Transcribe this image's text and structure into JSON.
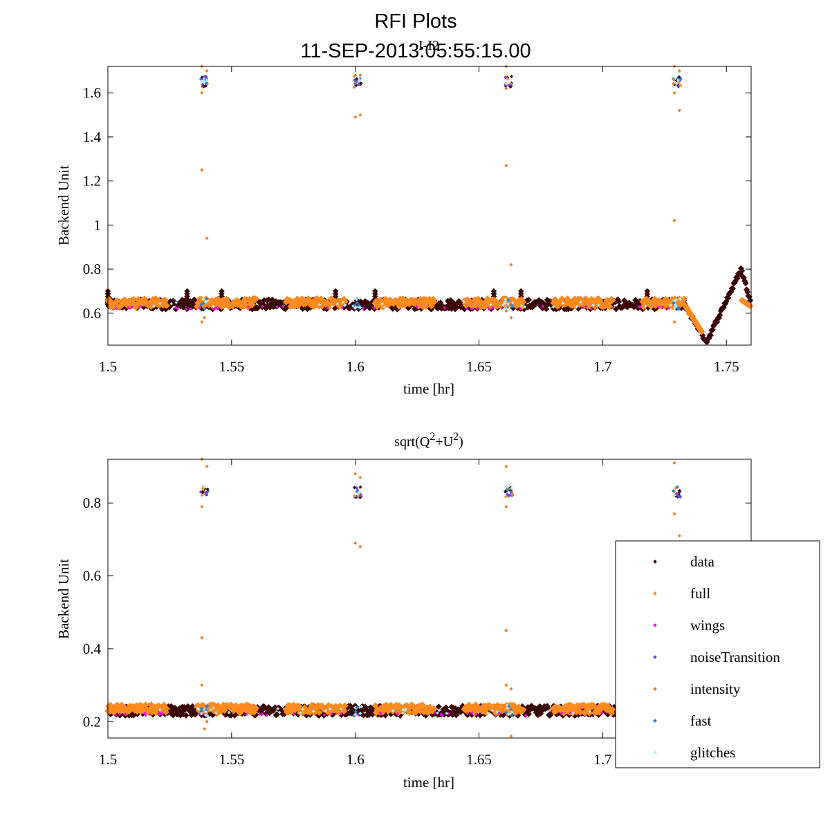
{
  "figure": {
    "title": "RFI Plots",
    "subtitle": "11-SEP-2013:05:55:15.00"
  },
  "colors": {
    "data": "#3a0606",
    "full": "#ff8a1e",
    "wings": "#ff00ff",
    "noiseTransition": "#7a3cff",
    "intensity": "#ee7a22",
    "fast": "#2a7fd0",
    "glitches": "#a8f0ff"
  },
  "legend": {
    "position": "bottom-right",
    "entries": [
      "data",
      "full",
      "wings",
      "noiseTransition",
      "intensity",
      "fast",
      "glitches"
    ]
  },
  "chart_data": [
    {
      "type": "scatter",
      "title": "I-I2",
      "xlabel": "time [hr]",
      "ylabel": "Backend Unit",
      "xlim": [
        1.5,
        1.76
      ],
      "ylim": [
        0.455,
        1.72
      ],
      "xticks": [
        1.5,
        1.55,
        1.6,
        1.65,
        1.7,
        1.75
      ],
      "xtick_labels": [
        "1.5",
        "1.55",
        "1.6",
        "1.65",
        "1.7",
        "1.75"
      ],
      "yticks": [
        0.6,
        0.8,
        1,
        1.2,
        1.4,
        1.6
      ],
      "ytick_labels": [
        "0.6",
        "0.8",
        "1",
        "1.2",
        "1.4",
        "1.6"
      ],
      "baseline": 0.64,
      "noise_spikes_x": [
        1.539,
        1.601,
        1.662,
        1.73
      ],
      "noise_spike_level": 1.65,
      "series": [
        {
          "name": "data",
          "description": "continuous band ~0.62-0.66 with spikes; dip to 0.47 at 1.742 then peak 0.80 at 1.756"
        },
        {
          "name": "full",
          "description": "dense band ~0.63-0.66 along the whole range"
        },
        {
          "name": "intensity",
          "points": [
            [
              1.538,
              1.72
            ],
            [
              1.538,
              1.6
            ],
            [
              1.538,
              1.25
            ],
            [
              1.54,
              0.94
            ],
            [
              1.538,
              0.56
            ],
            [
              1.539,
              0.58
            ],
            [
              1.54,
              1.7
            ],
            [
              1.6,
              1.68
            ],
            [
              1.6,
              1.49
            ],
            [
              1.602,
              1.5
            ],
            [
              1.602,
              1.68
            ],
            [
              1.661,
              1.72
            ],
            [
              1.661,
              1.62
            ],
            [
              1.661,
              1.27
            ],
            [
              1.663,
              0.82
            ],
            [
              1.663,
              0.58
            ],
            [
              1.661,
              0.61
            ],
            [
              1.729,
              1.72
            ],
            [
              1.729,
              1.6
            ],
            [
              1.729,
              1.02
            ],
            [
              1.731,
              1.52
            ],
            [
              1.729,
              0.56
            ],
            [
              1.731,
              1.7
            ]
          ]
        },
        {
          "name": "glitches",
          "description": "small cyan markers in clusters at the noise spikes"
        }
      ]
    },
    {
      "type": "scatter",
      "title": "sqrt(Q",
      "title_sup1": "2",
      "title_mid": "+U",
      "title_sup2": "2",
      "title_end": ")",
      "xlabel": "time [hr]",
      "ylabel": "Backend Unit",
      "xlim": [
        1.5,
        1.76
      ],
      "ylim": [
        0.155,
        0.92
      ],
      "xticks": [
        1.5,
        1.55,
        1.6,
        1.65,
        1.7
      ],
      "xtick_labels": [
        "1.5",
        "1.55",
        "1.6",
        "1.65",
        "1.7"
      ],
      "yticks": [
        0.2,
        0.4,
        0.6,
        0.8
      ],
      "ytick_labels": [
        "0.2",
        "0.4",
        "0.6",
        "0.8"
      ],
      "baseline": 0.23,
      "noise_spikes_x": [
        1.539,
        1.601,
        1.662,
        1.73
      ],
      "noise_spike_level": 0.83,
      "series": [
        {
          "name": "data",
          "description": "dark band ~0.21-0.25 across full range"
        },
        {
          "name": "full",
          "description": "orange band ~0.21-0.25"
        },
        {
          "name": "intensity",
          "points": [
            [
              1.538,
              0.92
            ],
            [
              1.538,
              0.79
            ],
            [
              1.538,
              0.43
            ],
            [
              1.538,
              0.3
            ],
            [
              1.54,
              0.2
            ],
            [
              1.539,
              0.18
            ],
            [
              1.54,
              0.9
            ],
            [
              1.6,
              0.88
            ],
            [
              1.6,
              0.69
            ],
            [
              1.602,
              0.68
            ],
            [
              1.602,
              0.87
            ],
            [
              1.661,
              0.9
            ],
            [
              1.661,
              0.79
            ],
            [
              1.661,
              0.45
            ],
            [
              1.661,
              0.3
            ],
            [
              1.663,
              0.16
            ],
            [
              1.663,
              0.29
            ],
            [
              1.729,
              0.91
            ],
            [
              1.729,
              0.77
            ],
            [
              1.731,
              0.71
            ]
          ]
        },
        {
          "name": "glitches",
          "description": "cyan markers in clusters at the noise spikes"
        }
      ]
    }
  ]
}
